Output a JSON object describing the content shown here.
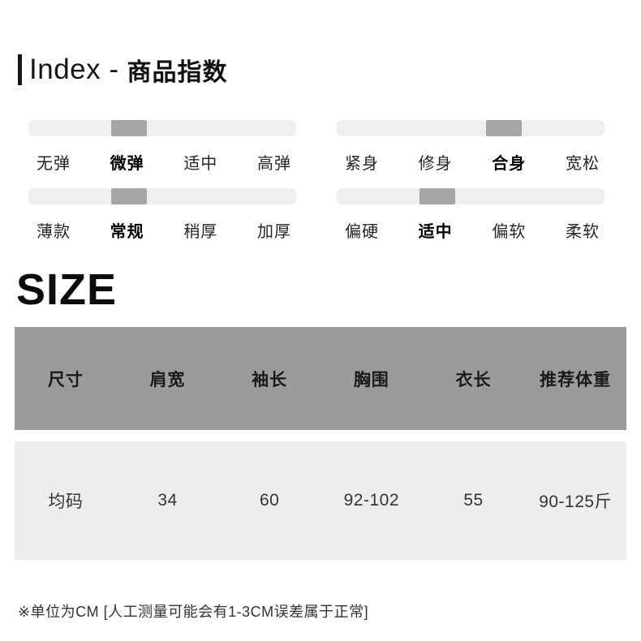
{
  "header": {
    "title_en": "Index -",
    "title_zh": "商品指数"
  },
  "indices": {
    "sliders": [
      {
        "name": "elasticity",
        "labels": [
          "无弹",
          "微弹",
          "适中",
          "高弹"
        ],
        "active": 1
      },
      {
        "name": "fit",
        "labels": [
          "紧身",
          "修身",
          "合身",
          "宽松"
        ],
        "active": 2
      },
      {
        "name": "thickness",
        "labels": [
          "薄款",
          "常规",
          "稍厚",
          "加厚"
        ],
        "active": 1
      },
      {
        "name": "softness",
        "labels": [
          "偏硬",
          "适中",
          "偏软",
          "柔软"
        ],
        "active": 1
      }
    ]
  },
  "size_section": {
    "heading": "SIZE",
    "table": {
      "headers": [
        "尺寸",
        "肩宽",
        "袖长",
        "胸围",
        "衣长",
        "推荐体重"
      ],
      "rows": [
        [
          "均码",
          "34",
          "60",
          "92-102",
          "55",
          "90-125斤"
        ]
      ]
    },
    "note": "※单位为CM [人工测量可能会有1-3CM误差属于正常]"
  },
  "colors": {
    "track": "#efefef",
    "active_segment": "#a5a5a5",
    "table_header_bg": "#9b9b9b",
    "table_row_bg": "#ededed"
  }
}
